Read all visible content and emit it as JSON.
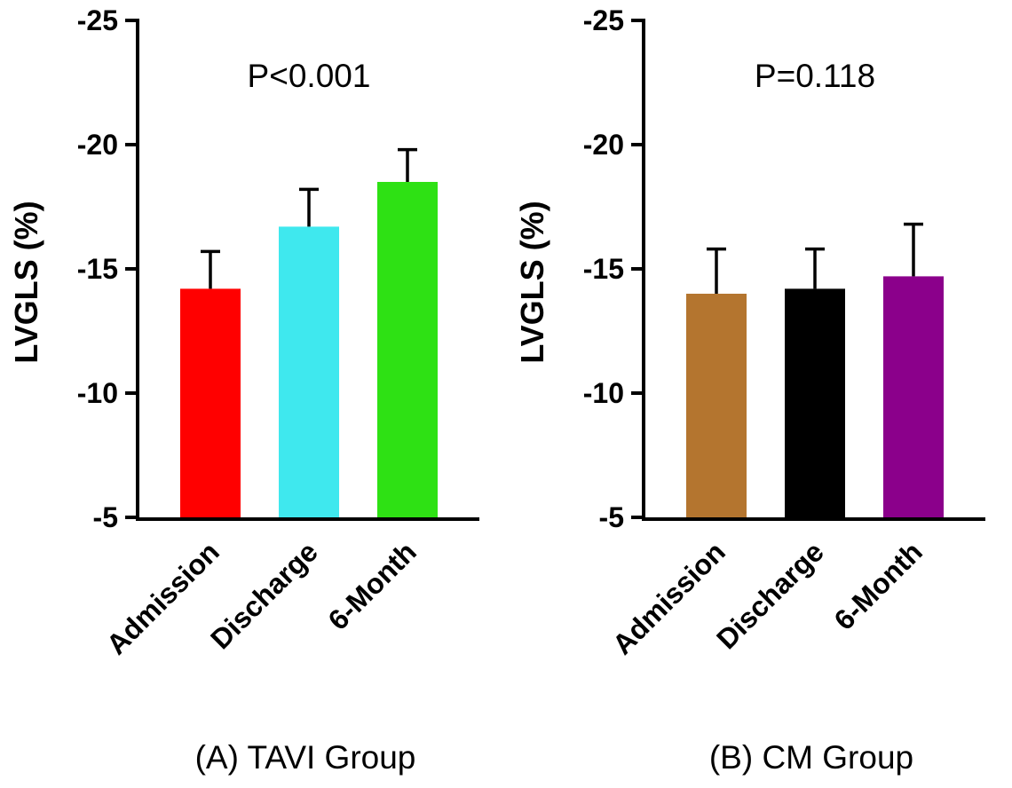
{
  "figure": {
    "background": "#ffffff",
    "axis_color": "#000000"
  },
  "chart_data": [
    {
      "type": "bar",
      "panel": "A",
      "title": "(A) TAVI Group",
      "p_label": "P<0.001",
      "ylabel": "LVGLS (%)",
      "categories": [
        "Admission",
        "Discharge",
        "6-Month"
      ],
      "values": [
        -14.2,
        -16.7,
        -18.5
      ],
      "errors": [
        1.5,
        1.5,
        1.3
      ],
      "bar_colors": [
        "#ff0000",
        "#3fe8ee",
        "#2ee114"
      ],
      "ylim": [
        -5,
        -25
      ],
      "yticks": [
        -5,
        -10,
        -15,
        -20,
        -25
      ],
      "grid": false,
      "legend": false
    },
    {
      "type": "bar",
      "panel": "B",
      "title": "(B) CM Group",
      "p_label": "P=0.118",
      "ylabel": "LVGLS (%)",
      "categories": [
        "Admission",
        "Discharge",
        "6-Month"
      ],
      "values": [
        -14.0,
        -14.2,
        -14.7
      ],
      "errors": [
        1.8,
        1.6,
        2.1
      ],
      "bar_colors": [
        "#b4752f",
        "#000000",
        "#8b008b"
      ],
      "ylim": [
        -5,
        -25
      ],
      "yticks": [
        -5,
        -10,
        -15,
        -20,
        -25
      ],
      "grid": false,
      "legend": false
    }
  ]
}
